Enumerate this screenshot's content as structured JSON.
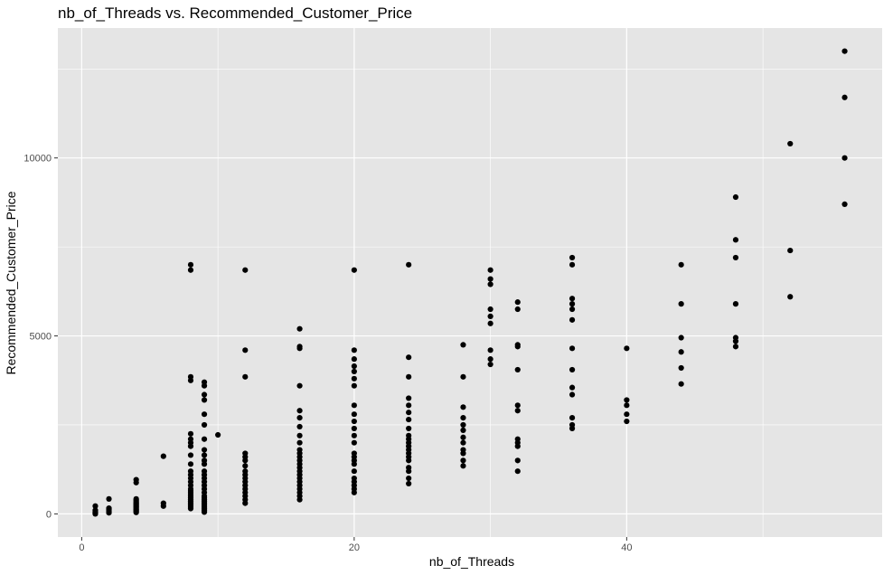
{
  "chart_data": {
    "type": "scatter",
    "title": "nb_of_Threads vs. Recommended_Customer_Price",
    "xlabel": "nb_of_Threads",
    "ylabel": "Recommended_Customer_Price",
    "xlim": [
      -1.75,
      58.75
    ],
    "ylim": [
      -650,
      13650
    ],
    "x_ticks": [
      0,
      20,
      40
    ],
    "x_minor_ticks": [
      10,
      30,
      50
    ],
    "y_ticks": [
      0,
      5000,
      10000
    ],
    "y_minor_ticks": [
      2500,
      7500,
      12500
    ],
    "grid": true,
    "legend": "none",
    "colors": {
      "panel": "#e5e5e5",
      "grid": "#ffffff",
      "point": "#000000"
    },
    "points": [
      [
        1,
        0
      ],
      [
        1,
        20
      ],
      [
        1,
        50
      ],
      [
        1,
        100
      ],
      [
        1,
        220
      ],
      [
        2,
        30
      ],
      [
        2,
        60
      ],
      [
        2,
        90
      ],
      [
        2,
        130
      ],
      [
        2,
        160
      ],
      [
        2,
        420
      ],
      [
        4,
        40
      ],
      [
        4,
        70
      ],
      [
        4,
        100
      ],
      [
        4,
        130
      ],
      [
        4,
        160
      ],
      [
        4,
        190
      ],
      [
        4,
        220
      ],
      [
        4,
        250
      ],
      [
        4,
        280
      ],
      [
        4,
        310
      ],
      [
        4,
        340
      ],
      [
        4,
        380
      ],
      [
        4,
        420
      ],
      [
        4,
        880
      ],
      [
        4,
        960
      ],
      [
        6,
        220
      ],
      [
        6,
        300
      ],
      [
        6,
        1620
      ],
      [
        8,
        150
      ],
      [
        8,
        200
      ],
      [
        8,
        250
      ],
      [
        8,
        300
      ],
      [
        8,
        350
      ],
      [
        8,
        400
      ],
      [
        8,
        450
      ],
      [
        8,
        500
      ],
      [
        8,
        550
      ],
      [
        8,
        600
      ],
      [
        8,
        650
      ],
      [
        8,
        700
      ],
      [
        8,
        800
      ],
      [
        8,
        900
      ],
      [
        8,
        1000
      ],
      [
        8,
        1100
      ],
      [
        8,
        1200
      ],
      [
        8,
        1400
      ],
      [
        8,
        1650
      ],
      [
        8,
        1900
      ],
      [
        8,
        2000
      ],
      [
        8,
        2100
      ],
      [
        8,
        2250
      ],
      [
        8,
        3750
      ],
      [
        8,
        3850
      ],
      [
        8,
        6850
      ],
      [
        8,
        7000
      ],
      [
        9,
        50
      ],
      [
        9,
        100
      ],
      [
        9,
        150
      ],
      [
        9,
        200
      ],
      [
        9,
        250
      ],
      [
        9,
        300
      ],
      [
        9,
        350
      ],
      [
        9,
        400
      ],
      [
        9,
        450
      ],
      [
        9,
        500
      ],
      [
        9,
        600
      ],
      [
        9,
        700
      ],
      [
        9,
        800
      ],
      [
        9,
        900
      ],
      [
        9,
        1000
      ],
      [
        9,
        1100
      ],
      [
        9,
        1200
      ],
      [
        9,
        1400
      ],
      [
        9,
        1500
      ],
      [
        9,
        1650
      ],
      [
        9,
        1800
      ],
      [
        9,
        2100
      ],
      [
        9,
        2500
      ],
      [
        9,
        2800
      ],
      [
        9,
        3200
      ],
      [
        9,
        3350
      ],
      [
        9,
        3600
      ],
      [
        9,
        3700
      ],
      [
        10,
        2220
      ],
      [
        12,
        300
      ],
      [
        12,
        400
      ],
      [
        12,
        500
      ],
      [
        12,
        600
      ],
      [
        12,
        700
      ],
      [
        12,
        800
      ],
      [
        12,
        900
      ],
      [
        12,
        1000
      ],
      [
        12,
        1100
      ],
      [
        12,
        1200
      ],
      [
        12,
        1350
      ],
      [
        12,
        1500
      ],
      [
        12,
        1600
      ],
      [
        12,
        1700
      ],
      [
        12,
        3850
      ],
      [
        12,
        4600
      ],
      [
        12,
        6850
      ],
      [
        16,
        400
      ],
      [
        16,
        500
      ],
      [
        16,
        600
      ],
      [
        16,
        700
      ],
      [
        16,
        800
      ],
      [
        16,
        900
      ],
      [
        16,
        1000
      ],
      [
        16,
        1100
      ],
      [
        16,
        1200
      ],
      [
        16,
        1300
      ],
      [
        16,
        1400
      ],
      [
        16,
        1500
      ],
      [
        16,
        1600
      ],
      [
        16,
        1700
      ],
      [
        16,
        1800
      ],
      [
        16,
        2000
      ],
      [
        16,
        2200
      ],
      [
        16,
        2450
      ],
      [
        16,
        2700
      ],
      [
        16,
        2900
      ],
      [
        16,
        3600
      ],
      [
        16,
        4650
      ],
      [
        16,
        4700
      ],
      [
        16,
        5200
      ],
      [
        20,
        600
      ],
      [
        20,
        700
      ],
      [
        20,
        800
      ],
      [
        20,
        900
      ],
      [
        20,
        1000
      ],
      [
        20,
        1200
      ],
      [
        20,
        1400
      ],
      [
        20,
        1500
      ],
      [
        20,
        1600
      ],
      [
        20,
        1700
      ],
      [
        20,
        2000
      ],
      [
        20,
        2200
      ],
      [
        20,
        2400
      ],
      [
        20,
        2600
      ],
      [
        20,
        2800
      ],
      [
        20,
        3050
      ],
      [
        20,
        3600
      ],
      [
        20,
        3800
      ],
      [
        20,
        4000
      ],
      [
        20,
        4150
      ],
      [
        20,
        4350
      ],
      [
        20,
        4600
      ],
      [
        20,
        6850
      ],
      [
        24,
        850
      ],
      [
        24,
        1000
      ],
      [
        24,
        1200
      ],
      [
        24,
        1300
      ],
      [
        24,
        1500
      ],
      [
        24,
        1600
      ],
      [
        24,
        1700
      ],
      [
        24,
        1800
      ],
      [
        24,
        1900
      ],
      [
        24,
        2000
      ],
      [
        24,
        2100
      ],
      [
        24,
        2200
      ],
      [
        24,
        2400
      ],
      [
        24,
        2650
      ],
      [
        24,
        2850
      ],
      [
        24,
        3050
      ],
      [
        24,
        3250
      ],
      [
        24,
        3850
      ],
      [
        24,
        4400
      ],
      [
        24,
        7000
      ],
      [
        28,
        1350
      ],
      [
        28,
        1500
      ],
      [
        28,
        1700
      ],
      [
        28,
        1800
      ],
      [
        28,
        2000
      ],
      [
        28,
        2150
      ],
      [
        28,
        2350
      ],
      [
        28,
        2500
      ],
      [
        28,
        2700
      ],
      [
        28,
        3000
      ],
      [
        28,
        3850
      ],
      [
        28,
        4750
      ],
      [
        30,
        4200
      ],
      [
        30,
        4350
      ],
      [
        30,
        4600
      ],
      [
        30,
        5350
      ],
      [
        30,
        5550
      ],
      [
        30,
        5750
      ],
      [
        30,
        6450
      ],
      [
        30,
        6600
      ],
      [
        30,
        6850
      ],
      [
        32,
        1200
      ],
      [
        32,
        1500
      ],
      [
        32,
        1900
      ],
      [
        32,
        2000
      ],
      [
        32,
        2100
      ],
      [
        32,
        2900
      ],
      [
        32,
        3050
      ],
      [
        32,
        4050
      ],
      [
        32,
        4700
      ],
      [
        32,
        4750
      ],
      [
        32,
        5750
      ],
      [
        32,
        5950
      ],
      [
        36,
        2400
      ],
      [
        36,
        2500
      ],
      [
        36,
        2700
      ],
      [
        36,
        3350
      ],
      [
        36,
        3550
      ],
      [
        36,
        4050
      ],
      [
        36,
        4650
      ],
      [
        36,
        5450
      ],
      [
        36,
        5750
      ],
      [
        36,
        5900
      ],
      [
        36,
        6050
      ],
      [
        36,
        7000
      ],
      [
        36,
        7200
      ],
      [
        40,
        2600
      ],
      [
        40,
        2800
      ],
      [
        40,
        3050
      ],
      [
        40,
        3200
      ],
      [
        40,
        4650
      ],
      [
        44,
        3650
      ],
      [
        44,
        4100
      ],
      [
        44,
        4550
      ],
      [
        44,
        4950
      ],
      [
        44,
        5900
      ],
      [
        44,
        7000
      ],
      [
        48,
        4700
      ],
      [
        48,
        4850
      ],
      [
        48,
        4950
      ],
      [
        48,
        5900
      ],
      [
        48,
        7200
      ],
      [
        48,
        7700
      ],
      [
        48,
        8900
      ],
      [
        52,
        6100
      ],
      [
        52,
        7400
      ],
      [
        52,
        10400
      ],
      [
        56,
        8700
      ],
      [
        56,
        10000
      ],
      [
        56,
        11700
      ],
      [
        56,
        13000
      ]
    ]
  }
}
